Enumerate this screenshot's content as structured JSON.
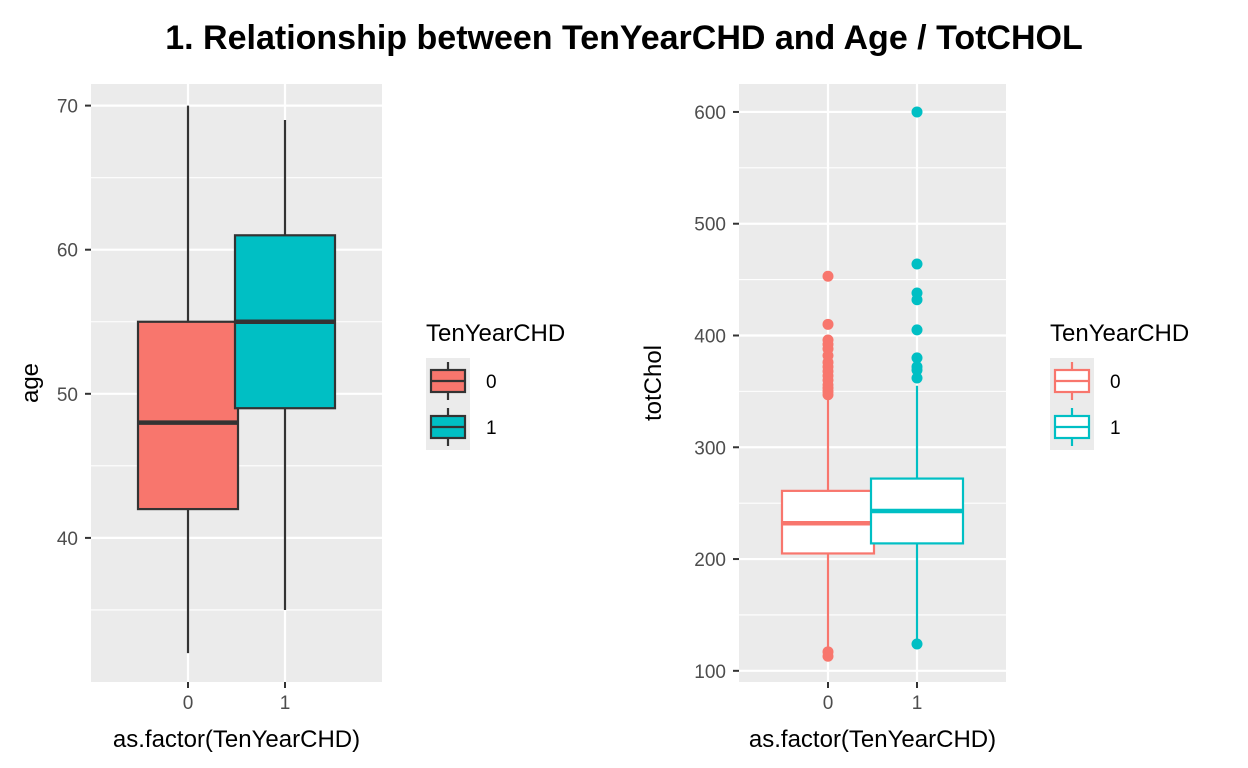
{
  "title": "1. Relationship between TenYearCHD and Age / TotCHOL",
  "colors": {
    "group0": "#F8766D",
    "group1": "#00BFC4",
    "panel_bg": "#EBEBEB",
    "grid": "#FFFFFF",
    "box_line": "#333333"
  },
  "chart_data": [
    {
      "type": "box",
      "fill_style": "filled",
      "xlabel": "as.factor(TenYearCHD)",
      "ylabel": "age",
      "ylim": [
        30,
        71.5
      ],
      "yticks": [
        40,
        50,
        60,
        70
      ],
      "categories": [
        "0",
        "1"
      ],
      "legend": {
        "title": "TenYearCHD",
        "entries": [
          "0",
          "1"
        ],
        "position": "right"
      },
      "boxes": [
        {
          "category": "0",
          "min": 32,
          "q1": 42,
          "median": 48,
          "q3": 55,
          "max": 70,
          "outliers": []
        },
        {
          "category": "1",
          "min": 35,
          "q1": 49,
          "median": 55,
          "q3": 61,
          "max": 69,
          "outliers": []
        }
      ]
    },
    {
      "type": "box",
      "fill_style": "outline",
      "xlabel": "as.factor(TenYearCHD)",
      "ylabel": "totChol",
      "ylim": [
        90,
        625
      ],
      "yticks": [
        100,
        200,
        300,
        400,
        500,
        600
      ],
      "categories": [
        "0",
        "1"
      ],
      "legend": {
        "title": "TenYearCHD",
        "entries": [
          "0",
          "1"
        ],
        "position": "right"
      },
      "boxes": [
        {
          "category": "0",
          "min": 119,
          "q1": 205,
          "median": 232,
          "q3": 261,
          "max": 345,
          "outliers": [
            113,
            117,
            347,
            350,
            353,
            356,
            360,
            364,
            368,
            372,
            376,
            382,
            388,
            392,
            396,
            410,
            453
          ]
        },
        {
          "category": "1",
          "min": 124,
          "q1": 214,
          "median": 243,
          "q3": 272,
          "max": 355,
          "outliers": [
            124,
            362,
            369,
            372,
            380,
            405,
            432,
            438,
            464,
            600
          ]
        }
      ]
    }
  ]
}
